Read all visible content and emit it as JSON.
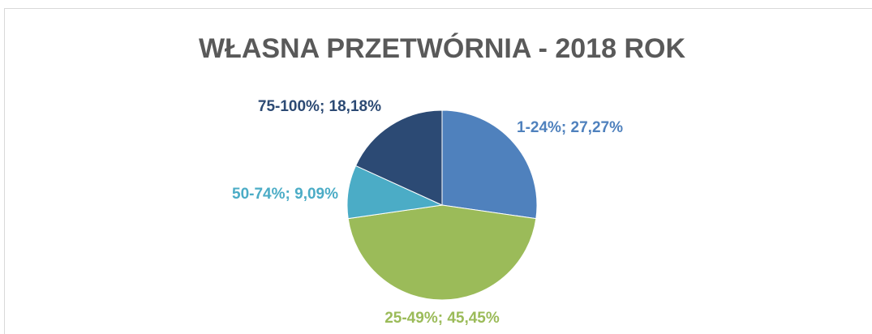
{
  "chart_data": {
    "type": "pie",
    "title": "WŁASNA PRZETWÓRNIA - 2018 ROK",
    "categories": [
      "1-24%",
      "25-49%",
      "50-74%",
      "75-100%"
    ],
    "values": [
      27.27,
      45.45,
      9.09,
      18.18
    ],
    "value_labels": [
      "27,27%",
      "45,45%",
      "9,09%",
      "18,18%"
    ],
    "colors": [
      "#4f81bd",
      "#9bbb59",
      "#4bacc6",
      "#2c4a74"
    ]
  }
}
